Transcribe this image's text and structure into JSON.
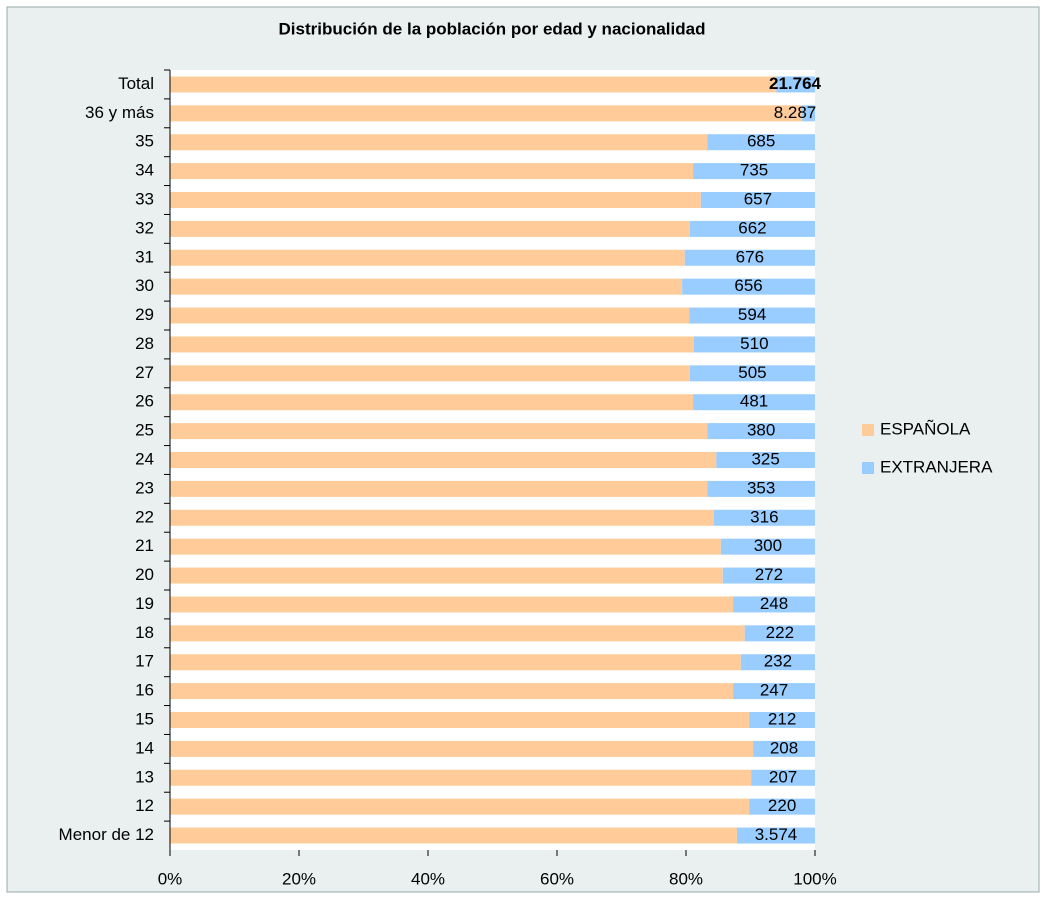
{
  "chart_data": {
    "type": "stacked_barh_percent",
    "title": "Distribución de la población por edad y nacionalidad",
    "categories": [
      "Total",
      "36  y más",
      "35",
      "34",
      "33",
      "32",
      "31",
      "30",
      "29",
      "28",
      "27",
      "26",
      "25",
      "24",
      "23",
      "22",
      "21",
      "20",
      "19",
      "18",
      "17",
      "16",
      "15",
      "14",
      "13",
      "12",
      "Menor de 12"
    ],
    "series": [
      {
        "name": "ESPAÑOLA",
        "color": "#ffcc99",
        "values": [
          94,
          98,
          83.3,
          81.1,
          82.3,
          80.6,
          79.8,
          79.4,
          80.5,
          81.2,
          80.6,
          81.1,
          83.3,
          84.7,
          83.3,
          84.3,
          85.4,
          85.7,
          87.3,
          89.1,
          88.5,
          87.3,
          89.8,
          90.4,
          90.1,
          89.8,
          87.9
        ]
      },
      {
        "name": "EXTRANJERA",
        "color": "#99ccff",
        "values": [
          6,
          2,
          16.7,
          18.9,
          17.7,
          19.4,
          20.2,
          20.6,
          19.5,
          18.8,
          19.4,
          18.9,
          16.7,
          15.3,
          16.7,
          15.7,
          14.6,
          14.3,
          12.7,
          10.9,
          11.5,
          12.7,
          10.2,
          9.6,
          9.9,
          10.2,
          12.1
        ]
      }
    ],
    "bar_labels": [
      "21.764",
      "8.287",
      "685",
      "735",
      "657",
      "662",
      "676",
      "656",
      "594",
      "510",
      "505",
      "481",
      "380",
      "325",
      "353",
      "316",
      "300",
      "272",
      "248",
      "222",
      "232",
      "247",
      "212",
      "208",
      "207",
      "220",
      "3.574"
    ],
    "xlim": [
      0,
      100
    ],
    "xticks": [
      {
        "value": 0,
        "label": "0%"
      },
      {
        "value": 20,
        "label": "20%"
      },
      {
        "value": 40,
        "label": "40%"
      },
      {
        "value": 60,
        "label": "60%"
      },
      {
        "value": 80,
        "label": "80%"
      },
      {
        "value": 100,
        "label": "100%"
      }
    ],
    "legend": "right"
  }
}
